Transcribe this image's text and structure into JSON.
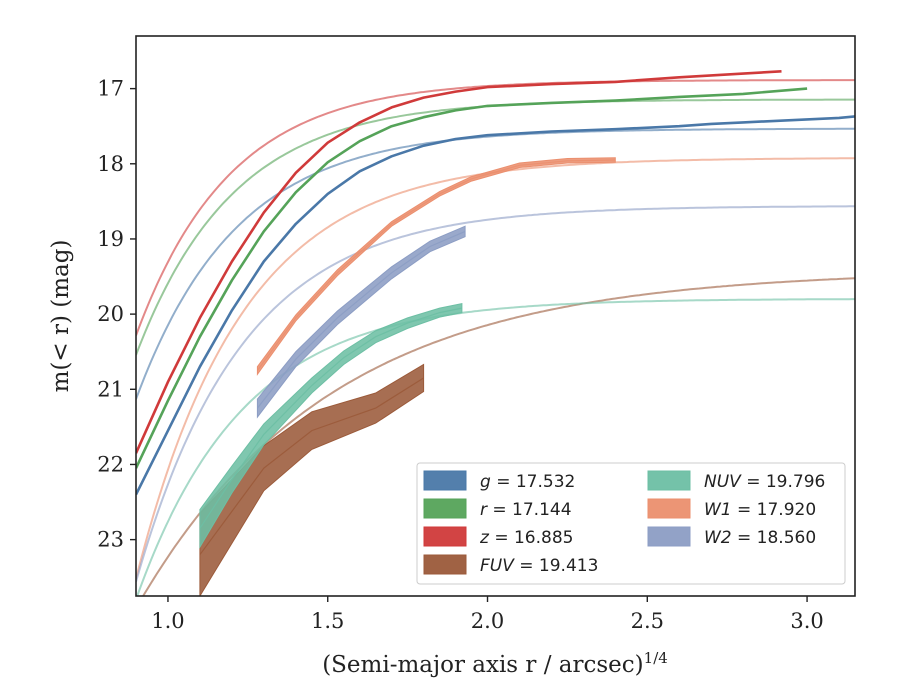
{
  "chart_data": {
    "type": "line",
    "xlabel": "(Semi-major axis r / arcsec)",
    "xlabel_superscript": "1/4",
    "ylabel": "m(< r) (mag)",
    "xlim": [
      0.9,
      3.15
    ],
    "ylim": [
      23.75,
      16.3
    ],
    "y_inverted": true,
    "grid": false,
    "legend_position": "lower-right",
    "x_ticks": [
      "1.0",
      "1.5",
      "2.0",
      "2.5",
      "3.0"
    ],
    "y_ticks": [
      "17",
      "18",
      "19",
      "20",
      "21",
      "22",
      "23"
    ],
    "series": [
      {
        "name": "g",
        "label": "g = 17.532",
        "legend_text": "= 17.532",
        "color": "#4a78a8",
        "model": {
          "asymptote": 17.532,
          "scale": 3.6,
          "rate": 3.2,
          "x0": 0.9
        },
        "data": {
          "x": [
            0.9,
            1.0,
            1.1,
            1.2,
            1.3,
            1.4,
            1.5,
            1.6,
            1.7,
            1.8,
            1.9,
            2.0,
            2.2,
            2.4,
            2.6,
            2.7,
            2.8,
            3.0,
            3.1,
            3.15
          ],
          "y": [
            22.4,
            21.55,
            20.7,
            19.95,
            19.3,
            18.8,
            18.4,
            18.1,
            17.9,
            17.76,
            17.67,
            17.62,
            17.57,
            17.54,
            17.5,
            17.47,
            17.45,
            17.41,
            17.39,
            17.37
          ]
        }
      },
      {
        "name": "r",
        "label": "r = 17.144",
        "legend_text": "= 17.144",
        "color": "#55a359",
        "model": {
          "asymptote": 17.144,
          "scale": 3.4,
          "rate": 3.3,
          "x0": 0.9
        },
        "data": {
          "x": [
            0.9,
            1.0,
            1.1,
            1.2,
            1.3,
            1.4,
            1.5,
            1.6,
            1.7,
            1.8,
            1.9,
            2.0,
            2.2,
            2.4,
            2.6,
            2.8,
            3.0
          ],
          "y": [
            22.05,
            21.15,
            20.3,
            19.55,
            18.9,
            18.38,
            17.98,
            17.7,
            17.5,
            17.38,
            17.29,
            17.23,
            17.19,
            17.16,
            17.11,
            17.07,
            17.0
          ]
        }
      },
      {
        "name": "z",
        "label": "z = 16.885",
        "legend_text": "= 16.885",
        "color": "#d03a3a",
        "model": {
          "asymptote": 16.885,
          "scale": 3.4,
          "rate": 3.4,
          "x0": 0.9
        },
        "data": {
          "x": [
            0.9,
            1.0,
            1.1,
            1.2,
            1.3,
            1.4,
            1.5,
            1.6,
            1.7,
            1.8,
            1.9,
            2.0,
            2.2,
            2.4,
            2.6,
            2.8,
            2.92
          ],
          "y": [
            21.85,
            20.9,
            20.05,
            19.3,
            18.65,
            18.12,
            17.72,
            17.45,
            17.25,
            17.12,
            17.04,
            16.98,
            16.94,
            16.91,
            16.85,
            16.8,
            16.77
          ]
        }
      },
      {
        "name": "FUV",
        "label": "FUV = 19.413",
        "legend_text": "= 19.413",
        "color": "#9b5a3a",
        "model": {
          "asymptote": 19.413,
          "scale": 4.5,
          "rate": 1.65,
          "x0": 0.9
        },
        "data": {
          "x": [
            1.1,
            1.3,
            1.45,
            1.65,
            1.8
          ],
          "y": [
            23.2,
            22.05,
            21.55,
            21.25,
            20.85
          ],
          "err": [
            0.55,
            0.3,
            0.25,
            0.2,
            0.18
          ]
        }
      },
      {
        "name": "NUV",
        "label": "NUV = 19.796",
        "legend_text": "= 19.796",
        "color": "#6dbfa4",
        "model": {
          "asymptote": 19.796,
          "scale": 4.0,
          "rate": 3.0,
          "x0": 0.9
        },
        "data": {
          "x": [
            1.1,
            1.2,
            1.3,
            1.45,
            1.55,
            1.65,
            1.75,
            1.85,
            1.92
          ],
          "y": [
            22.85,
            22.2,
            21.6,
            20.95,
            20.58,
            20.3,
            20.12,
            19.98,
            19.92
          ],
          "err": [
            0.25,
            0.18,
            0.14,
            0.1,
            0.09,
            0.08,
            0.07,
            0.06,
            0.06
          ]
        }
      },
      {
        "name": "W1",
        "label": "W1 = 17.920",
        "legend_text": "= 17.920",
        "color": "#eb8f6e",
        "model": {
          "asymptote": 17.92,
          "scale": 5.6,
          "rate": 3.0,
          "x0": 0.9
        },
        "data": {
          "x": [
            1.28,
            1.4,
            1.53,
            1.7,
            1.85,
            1.95,
            2.1,
            2.25,
            2.4
          ],
          "y": [
            20.75,
            20.05,
            19.45,
            18.8,
            18.4,
            18.2,
            18.02,
            17.96,
            17.95
          ],
          "err": [
            0.05,
            0.04,
            0.04,
            0.03,
            0.03,
            0.03,
            0.03,
            0.03,
            0.03
          ]
        }
      },
      {
        "name": "W2",
        "label": "W2 = 18.560",
        "legend_text": "= 18.560",
        "color": "#8c9dc4",
        "model": {
          "asymptote": 18.56,
          "scale": 5.0,
          "rate": 3.0,
          "x0": 0.9
        },
        "data": {
          "x": [
            1.28,
            1.4,
            1.53,
            1.7,
            1.82,
            1.93
          ],
          "y": [
            21.25,
            20.6,
            20.05,
            19.45,
            19.1,
            18.9
          ],
          "err": [
            0.12,
            0.1,
            0.09,
            0.08,
            0.07,
            0.07
          ]
        }
      }
    ],
    "legend_columns": [
      [
        "g",
        "r",
        "z",
        "FUV"
      ],
      [
        "NUV",
        "W1",
        "W2"
      ]
    ]
  }
}
